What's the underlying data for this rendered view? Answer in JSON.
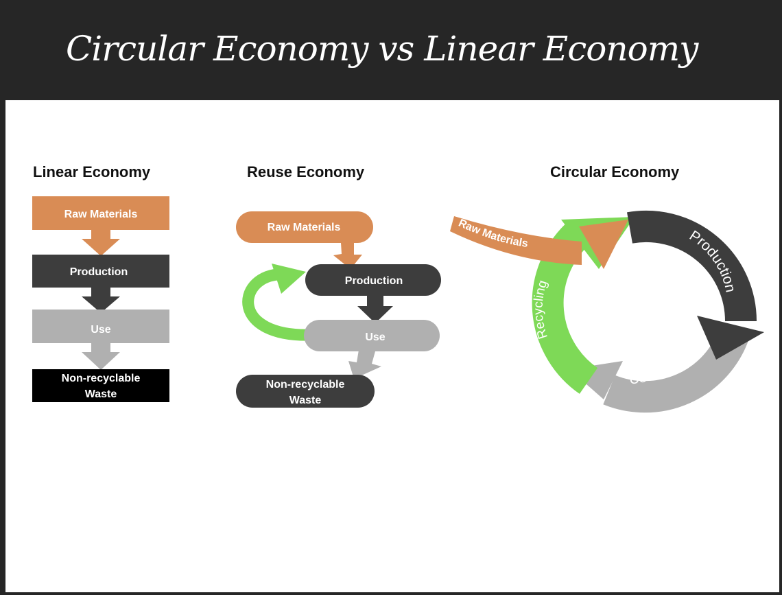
{
  "slide": {
    "title": "Circular Economy vs Linear Economy"
  },
  "colors": {
    "raw": "#d98c55",
    "production": "#3d3d3d",
    "use": "#b0b0b0",
    "waste": "#000000",
    "recycling": "#7ed957"
  },
  "linear": {
    "heading": "Linear Economy",
    "raw": "Raw Materials",
    "production": "Production",
    "use": "Use",
    "waste_line1": "Non-recyclable",
    "waste_line2": "Waste"
  },
  "reuse": {
    "heading": "Reuse Economy",
    "raw": "Raw Materials",
    "production": "Production",
    "use": "Use",
    "waste_line1": "Non-recyclable",
    "waste_line2": "Waste"
  },
  "circular": {
    "heading": "Circular Economy",
    "raw": "Raw Materials",
    "production": "Production",
    "use": "Use",
    "recycling": "Recycling"
  }
}
